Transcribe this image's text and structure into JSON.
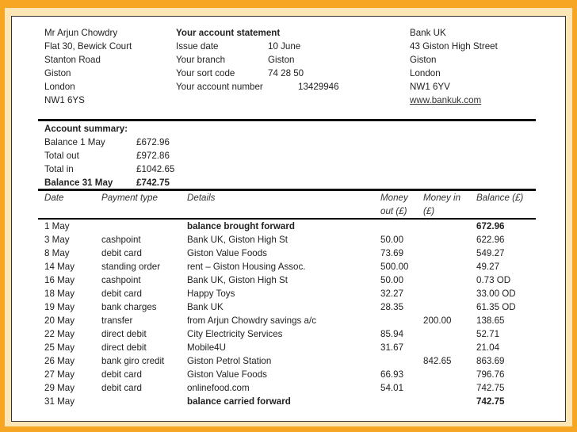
{
  "customer": {
    "lines": [
      "Mr Arjun Chowdry",
      "Flat 30, Bewick Court",
      "Stanton Road",
      "Giston",
      "London",
      "NW1 6YS"
    ]
  },
  "statement": {
    "title": "Your account statement",
    "fields": [
      {
        "label": "Issue date",
        "value": "10 June"
      },
      {
        "label": "Your branch",
        "value": "Giston"
      },
      {
        "label": "Your sort code",
        "value": "74 28 50"
      },
      {
        "label": "Your account number",
        "value": "13429946"
      }
    ]
  },
  "bank": {
    "lines": [
      "Bank UK",
      "43 Giston High Street",
      "Giston",
      "London",
      "NW1 6YV"
    ],
    "website": "www.bankuk.com"
  },
  "summary": {
    "title": "Account summary:",
    "items": [
      {
        "label": "Balance 1 May",
        "value": "£672.96"
      },
      {
        "label": "Total out",
        "value": "£972.86"
      },
      {
        "label": "Total in",
        "value": "£1042.65"
      },
      {
        "label": "Balance 31 May",
        "value": "£742.75"
      }
    ]
  },
  "table": {
    "headers": {
      "date": "Date",
      "type": "Payment type",
      "details": "Details",
      "out1": "Money",
      "out2": "out (£)",
      "in1": "Money in",
      "in2": "(£)",
      "balance": "Balance (£)"
    },
    "rows": [
      {
        "date": "1 May",
        "type": "",
        "details": "balance brought forward",
        "out": "",
        "in": "",
        "balance": "672.96",
        "bold": true
      },
      {
        "date": "3 May",
        "type": "cashpoint",
        "details": "Bank UK, Giston High St",
        "out": "50.00",
        "in": "",
        "balance": "622.96"
      },
      {
        "date": "8 May",
        "type": "debit card",
        "details": "Giston Value Foods",
        "out": "73.69",
        "in": "",
        "balance": "549.27"
      },
      {
        "date": "14 May",
        "type": "standing order",
        "details": "rent – Giston Housing Assoc.",
        "out": "500.00",
        "in": "",
        "balance": "49.27"
      },
      {
        "date": "16 May",
        "type": "cashpoint",
        "details": "Bank UK, Giston High St",
        "out": "50.00",
        "in": "",
        "balance": "0.73 OD"
      },
      {
        "date": "18 May",
        "type": "debit card",
        "details": "Happy Toys",
        "out": "32.27",
        "in": "",
        "balance": "33.00 OD"
      },
      {
        "date": "19 May",
        "type": "bank charges",
        "details": "Bank UK",
        "out": "28.35",
        "in": "",
        "balance": "61.35 OD"
      },
      {
        "date": "20 May",
        "type": "transfer",
        "details": "from Arjun Chowdry savings a/c",
        "out": "",
        "in": "200.00",
        "balance": "138.65"
      },
      {
        "date": "22 May",
        "type": "direct debit",
        "details": "City Electricity Services",
        "out": "85.94",
        "in": "",
        "balance": "52.71"
      },
      {
        "date": "25 May",
        "type": "direct debit",
        "details": "Mobile4U",
        "out": "31.67",
        "in": "",
        "balance": "21.04"
      },
      {
        "date": "26 May",
        "type": "bank giro credit",
        "details": "Giston Petrol Station",
        "out": "",
        "in": "842.65",
        "balance": "863.69"
      },
      {
        "date": "27 May",
        "type": "debit card",
        "details": "Giston Value Foods",
        "out": "66.93",
        "in": "",
        "balance": "796.76"
      },
      {
        "date": "29 May",
        "type": "debit card",
        "details": "onlinefood.com",
        "out": "54.01",
        "in": "",
        "balance": "742.75"
      },
      {
        "date": "31 May",
        "type": "",
        "details": "balance carried forward",
        "out": "",
        "in": "",
        "balance": "742.75",
        "bold": true
      }
    ]
  }
}
